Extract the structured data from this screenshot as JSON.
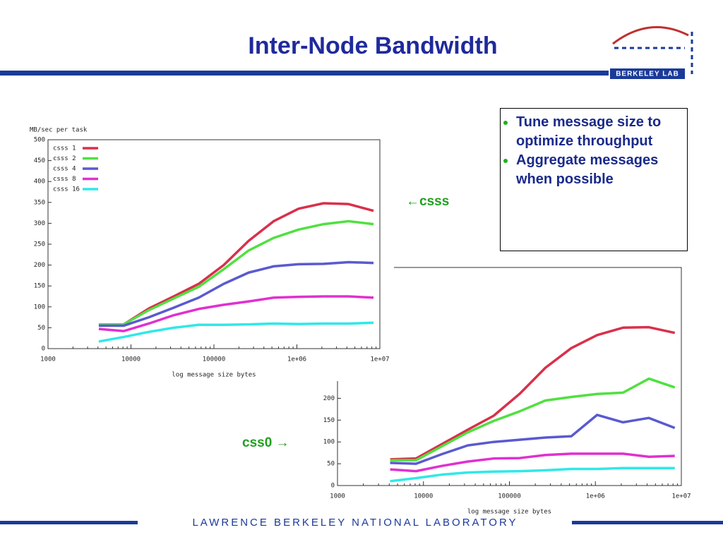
{
  "header": {
    "title": "Inter-Node Bandwidth",
    "logo": "BERKELEY LAB"
  },
  "footer": "LAWRENCE BERKELEY NATIONAL LABORATORY",
  "bullets": [
    "Tune message size to optimize throughput",
    "Aggregate messages when possible"
  ],
  "labels": {
    "top": "←csss",
    "bottom": "css0 →"
  },
  "chart_data": [
    {
      "type": "line",
      "ylabel": "MB/sec per task",
      "xlabel": "log message size bytes",
      "xscale": "log",
      "x": [
        4096,
        8192,
        16384,
        32768,
        65536,
        131072,
        262144,
        524288,
        1048576,
        2097152,
        4194304,
        8388608
      ],
      "xlim": [
        1000,
        10000000
      ],
      "xticks": [
        1000,
        10000,
        100000,
        {
          "value": 1000000,
          "label": "1e+06"
        },
        {
          "value": 10000000,
          "label": "1e+07"
        }
      ],
      "ylim": [
        0,
        500
      ],
      "yticks": [
        0,
        50,
        100,
        150,
        200,
        250,
        300,
        350,
        400,
        450,
        500
      ],
      "legend": "upper left",
      "series": [
        {
          "name": "csss 1",
          "color": "#d9304a",
          "values": [
            57,
            58,
            96,
            125,
            155,
            200,
            258,
            305,
            335,
            348,
            346,
            330
          ]
        },
        {
          "name": "csss 2",
          "color": "#50e040",
          "values": [
            58,
            58,
            92,
            120,
            148,
            190,
            235,
            265,
            285,
            298,
            305,
            298
          ]
        },
        {
          "name": "csss 4",
          "color": "#5a5ad0",
          "values": [
            55,
            55,
            75,
            98,
            122,
            155,
            182,
            197,
            202,
            203,
            207,
            205
          ]
        },
        {
          "name": "csss 8",
          "color": "#e030d0",
          "values": [
            47,
            42,
            60,
            80,
            95,
            105,
            113,
            122,
            124,
            125,
            125,
            122
          ]
        },
        {
          "name": "csss 16",
          "color": "#30e8e8",
          "values": [
            17,
            28,
            40,
            50,
            57,
            57,
            58,
            60,
            59,
            60,
            60,
            62
          ]
        }
      ]
    },
    {
      "type": "line",
      "xlabel": "log message size bytes",
      "xscale": "log",
      "x": [
        4096,
        8192,
        16384,
        32768,
        65536,
        131072,
        262144,
        524288,
        1048576,
        2097152,
        4194304,
        8388608
      ],
      "xlim": [
        1000,
        10000000
      ],
      "xticks": [
        1000,
        10000,
        100000,
        {
          "value": 1000000,
          "label": "1e+06"
        },
        {
          "value": 10000000,
          "label": "1e+07"
        }
      ],
      "ylim": [
        0,
        500
      ],
      "yticks": [
        0,
        50,
        100,
        150,
        200
      ],
      "series": [
        {
          "color": "#d9304a",
          "values": [
            60,
            62,
            95,
            128,
            160,
            210,
            270,
            315,
            345,
            362,
            363,
            350
          ]
        },
        {
          "color": "#50e040",
          "values": [
            58,
            58,
            90,
            122,
            148,
            170,
            195,
            203,
            210,
            213,
            245,
            225
          ]
        },
        {
          "color": "#5a5ad0",
          "values": [
            52,
            50,
            72,
            92,
            100,
            105,
            110,
            113,
            162,
            145,
            155,
            132
          ]
        },
        {
          "color": "#e030d0",
          "values": [
            37,
            33,
            45,
            55,
            62,
            63,
            70,
            73,
            73,
            73,
            66,
            68
          ]
        },
        {
          "color": "#30e8e8",
          "values": [
            10,
            17,
            25,
            30,
            32,
            33,
            35,
            38,
            38,
            40,
            40,
            40
          ]
        }
      ]
    }
  ]
}
